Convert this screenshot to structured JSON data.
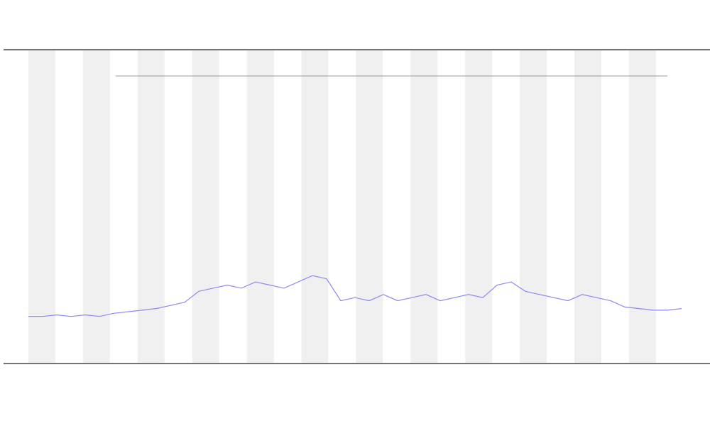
{
  "chart_data": {
    "type": "line",
    "categories": [
      null,
      null,
      null,
      null,
      null,
      null,
      null,
      null,
      null,
      null,
      null,
      null,
      null,
      null,
      null,
      null,
      null,
      null,
      null,
      null,
      null,
      null,
      null,
      null,
      null,
      null,
      null,
      null,
      null,
      null,
      null,
      null,
      null,
      null,
      null,
      null,
      null,
      null,
      null,
      null,
      null,
      null,
      null,
      null,
      null,
      null,
      null
    ],
    "series": [
      {
        "color": "#8a8aee",
        "values": [
          15,
          15,
          15.5,
          15,
          15.5,
          15,
          16,
          16.5,
          17,
          17.5,
          18.5,
          19.5,
          23,
          24,
          25,
          24,
          26,
          25,
          24,
          26,
          28,
          27,
          20,
          21,
          20,
          22,
          20,
          21,
          22,
          20,
          21,
          22,
          21,
          25,
          26,
          23,
          22,
          21,
          20,
          22,
          21,
          20,
          18,
          17.5,
          17,
          17,
          17.5
        ]
      }
    ],
    "ylim": [
      0,
      100
    ]
  }
}
